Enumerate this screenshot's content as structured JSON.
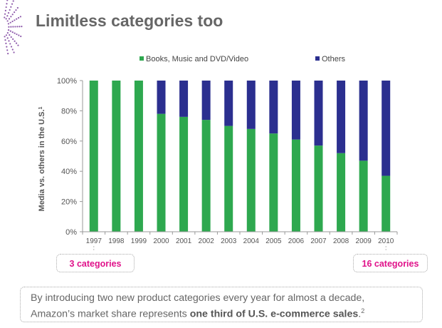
{
  "slide": {
    "title": "Limitless categories too",
    "callout_left": "3 categories",
    "callout_right": "16 categories",
    "footer": {
      "line1": "By introducing two new product categories every year for almost a decade,",
      "line2_prefix": "Amazon’s market share represents ",
      "line2_bold": "one third of U.S. e-commerce sales",
      "line2_suffix": ".",
      "footnote": "2"
    }
  },
  "colors": {
    "media": "#2ea84f",
    "others": "#2b2f8f",
    "callout_text": "#e0128a",
    "logo": "#7b3f9e"
  },
  "chart_data": {
    "type": "bar",
    "stacked": true,
    "categories": [
      "1997",
      "1998",
      "1999",
      "2000",
      "2001",
      "2002",
      "2003",
      "2004",
      "2005",
      "2006",
      "2007",
      "2008",
      "2009",
      "2010"
    ],
    "series": [
      {
        "name": "Books, Music and DVD/Video",
        "values": [
          100,
          100,
          100,
          78,
          76,
          74,
          70,
          68,
          65,
          61,
          57,
          52,
          47,
          37
        ]
      },
      {
        "name": "Others",
        "values": [
          0,
          0,
          0,
          22,
          24,
          26,
          30,
          32,
          35,
          39,
          43,
          48,
          53,
          63
        ]
      }
    ],
    "ylabel": "Media vs. others in the U.S.",
    "ylabel_sup": "1",
    "yticks": [
      "0%",
      "20%",
      "40%",
      "60%",
      "80%",
      "100%"
    ],
    "ylim": [
      0,
      100
    ],
    "legend_position": "top-center",
    "grid": false
  }
}
